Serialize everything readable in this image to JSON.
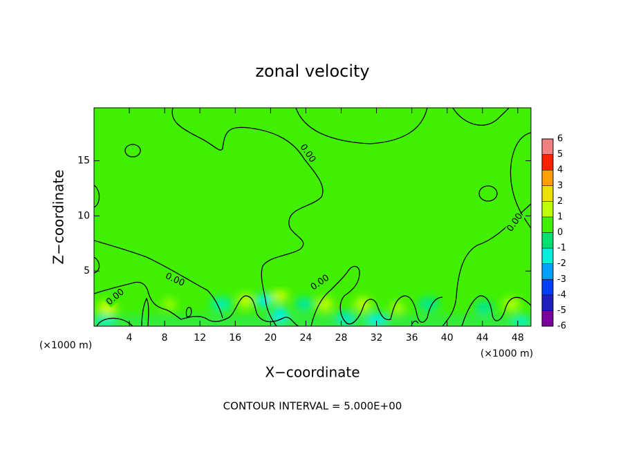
{
  "chart_data": {
    "type": "contour",
    "title": "zonal velocity",
    "x_label": "X−coordinate",
    "y_label": "Z−coordinate",
    "x_unit_labels": [
      "(×1000 m)",
      "(×1000 m)"
    ],
    "xlim": [
      0,
      49.5
    ],
    "xticks": [
      4,
      8,
      12,
      16,
      20,
      24,
      28,
      32,
      36,
      40,
      44,
      48
    ],
    "ylim": [
      0,
      19.8
    ],
    "yticks": [
      5,
      10,
      15
    ],
    "colorbar": {
      "ticks": [
        -6,
        -5,
        -4,
        -3,
        -2,
        -1,
        0,
        1,
        2,
        3,
        4,
        5,
        6
      ],
      "colors": [
        "#7a00a0",
        "#2020c0",
        "#0040ff",
        "#00a0ff",
        "#00f0e0",
        "#00e070",
        "#40f000",
        "#c0ff00",
        "#f0e000",
        "#ffa000",
        "#ff2000",
        "#f08080"
      ]
    },
    "contour_labels": [
      "0.00",
      "0.00",
      "0.00",
      "0.00",
      "0.00"
    ],
    "footer": "CONTOUR INTERVAL = 5.000E+00"
  }
}
